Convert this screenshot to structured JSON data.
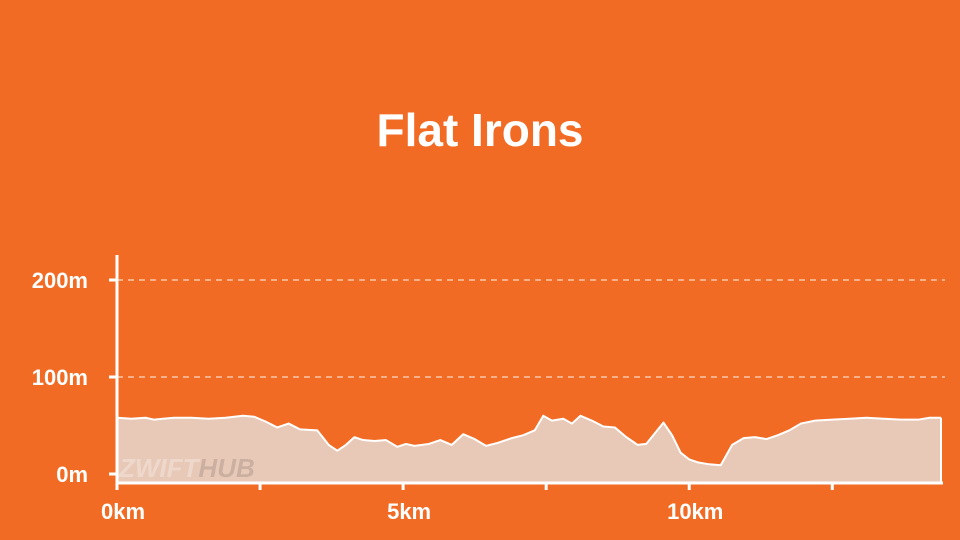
{
  "chart_data": {
    "type": "area",
    "title": "Flat Irons",
    "xlabel": "",
    "ylabel": "",
    "x_unit": "km",
    "y_unit": "m",
    "xlim": [
      0,
      14.4
    ],
    "ylim": [
      0,
      225
    ],
    "y_ticks": [
      {
        "value": 0,
        "label": "0m"
      },
      {
        "value": 100,
        "label": "100m"
      },
      {
        "value": 200,
        "label": "200m"
      }
    ],
    "y_gridlines": [
      100,
      200
    ],
    "x_ticks": [
      {
        "value": 0,
        "label": "0km"
      },
      {
        "value": 2.5,
        "label": ""
      },
      {
        "value": 5,
        "label": "5km"
      },
      {
        "value": 7.5,
        "label": ""
      },
      {
        "value": 10,
        "label": "10km"
      },
      {
        "value": 12.5,
        "label": ""
      }
    ],
    "grid": true,
    "fill_color": "#e8c9b8",
    "line_color": "#ffffff",
    "x": [
      0,
      0.25,
      0.5,
      0.65,
      0.8,
      1.0,
      1.3,
      1.6,
      1.9,
      2.2,
      2.4,
      2.6,
      2.8,
      3.0,
      3.2,
      3.5,
      3.7,
      3.85,
      4.0,
      4.15,
      4.3,
      4.5,
      4.7,
      4.9,
      5.05,
      5.2,
      5.45,
      5.65,
      5.85,
      6.05,
      6.25,
      6.45,
      6.65,
      6.9,
      7.1,
      7.3,
      7.45,
      7.6,
      7.8,
      7.95,
      8.1,
      8.3,
      8.5,
      8.7,
      8.9,
      9.1,
      9.25,
      9.4,
      9.55,
      9.7,
      9.85,
      10.0,
      10.15,
      10.35,
      10.55,
      10.75,
      10.95,
      11.15,
      11.35,
      11.55,
      11.75,
      11.95,
      12.2,
      12.5,
      12.8,
      13.1,
      13.4,
      13.7,
      14.0,
      14.2,
      14.4
    ],
    "y": [
      58,
      57,
      58,
      56,
      57,
      58,
      58,
      57,
      58,
      60,
      59,
      54,
      48,
      52,
      46,
      45,
      30,
      24,
      30,
      38,
      35,
      34,
      35,
      28,
      31,
      29,
      31,
      35,
      30,
      41,
      36,
      29,
      32,
      37,
      40,
      45,
      60,
      55,
      57,
      52,
      60,
      55,
      49,
      48,
      38,
      30,
      31,
      42,
      53,
      40,
      22,
      15,
      12,
      10,
      9,
      30,
      37,
      38,
      36,
      40,
      45,
      52,
      55,
      56,
      57,
      58,
      57,
      56,
      56,
      58,
      58
    ]
  },
  "watermark": {
    "part1": "ZWIFT",
    "part2": "HUB"
  }
}
